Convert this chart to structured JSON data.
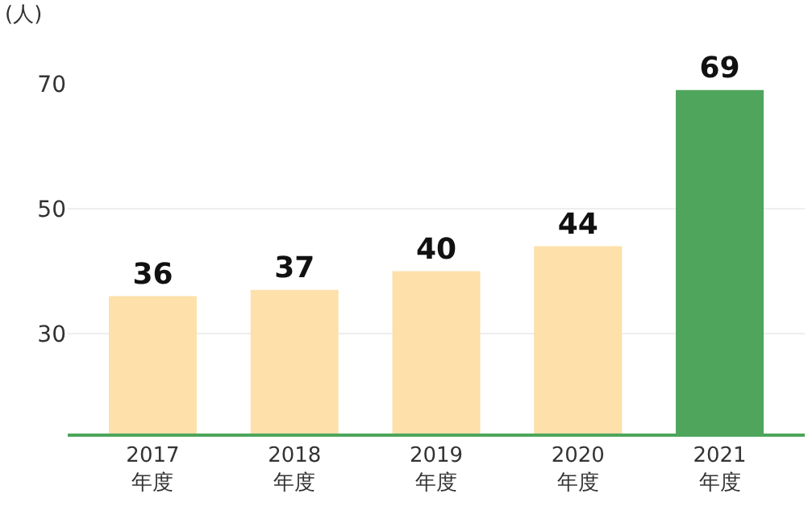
{
  "chart_data": {
    "type": "bar",
    "ylabel": "(人)",
    "categories": [
      "2017\n年度",
      "2018\n年度",
      "2019\n年度",
      "2020\n年度",
      "2021\n年度"
    ],
    "values": [
      36,
      37,
      40,
      44,
      69
    ],
    "colors": [
      "#fde0aa",
      "#fde0aa",
      "#fde0aa",
      "#fde0aa",
      "#4ea55b"
    ],
    "ylim": [
      14,
      70
    ],
    "yticks": [
      30,
      50,
      70
    ],
    "grid": "y",
    "data_labels": true
  }
}
